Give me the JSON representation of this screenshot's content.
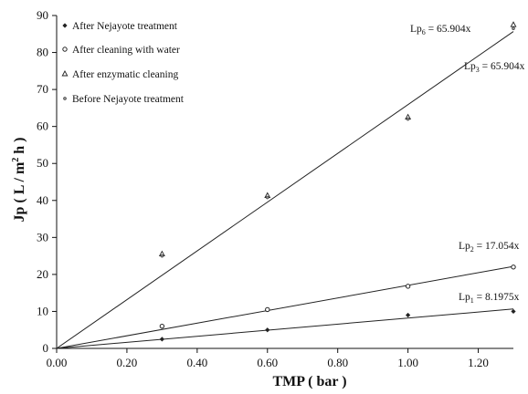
{
  "chart_data": {
    "type": "scatter",
    "xlabel": "TMP ( bar )",
    "ylabel_main": "Jp ( L / m",
    "ylabel_sup": "2",
    "ylabel_end": " h )",
    "xlim": [
      0,
      1.3
    ],
    "ylim": [
      0,
      90
    ],
    "x_ticks": [
      "0.00",
      "0.20",
      "0.40",
      "0.60",
      "0.80",
      "1.00",
      "1.20"
    ],
    "y_ticks": [
      "0",
      "10",
      "20",
      "30",
      "40",
      "50",
      "60",
      "70",
      "80",
      "90"
    ],
    "grid": false,
    "legend_position": "top-left",
    "series": [
      {
        "name": "After Nejayote treatment",
        "marker": "filled-diamond",
        "x": [
          0.3,
          0.6,
          1.0,
          1.3
        ],
        "y": [
          2.5,
          5.0,
          9.0,
          10.0
        ]
      },
      {
        "name": "After cleaning with water",
        "marker": "open-circle",
        "x": [
          0.3,
          0.6,
          1.0,
          1.3
        ],
        "y": [
          6.0,
          10.5,
          16.8,
          22.0
        ]
      },
      {
        "name": "After enzymatic cleaning",
        "marker": "triangle",
        "x": [
          0.3,
          0.6,
          1.0,
          1.3
        ],
        "y": [
          25.5,
          41.3,
          62.5,
          87.5
        ]
      },
      {
        "name": "Before Nejayote treatment",
        "marker": "small-dot",
        "x": [
          0.3,
          0.6,
          1.0,
          1.3
        ],
        "y": [
          25.0,
          40.8,
          62.0,
          86.5
        ]
      }
    ],
    "fit_lines": [
      {
        "label_pre": "Lp",
        "label_sub": "6",
        "label_post": " = 65.904x",
        "slope": 65.904
      },
      {
        "label_pre": "Lp",
        "label_sub": "3",
        "label_post": " = 65.904x",
        "slope": 65.904
      },
      {
        "label_pre": "Lp",
        "label_sub": "2",
        "label_post": " = 17.054x",
        "slope": 17.054
      },
      {
        "label_pre": "Lp",
        "label_sub": "1",
        "label_post": " = 8.1975x",
        "slope": 8.1975
      }
    ],
    "fit_line_slopes_drawn": [
      65.904,
      17.054,
      8.1975
    ],
    "colors": {
      "axis": "#111111",
      "marker": "#222222",
      "line": "#222222"
    }
  }
}
